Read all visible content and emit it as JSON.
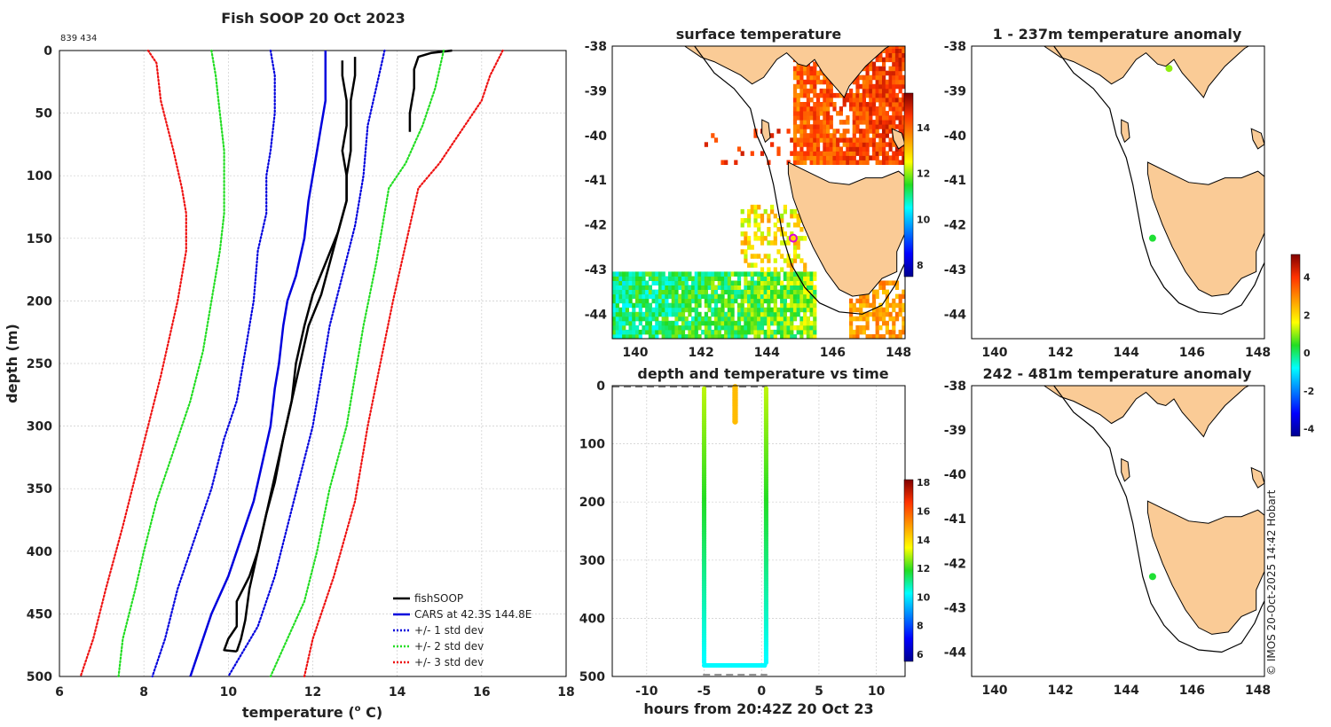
{
  "chart_data": [
    {
      "type": "line",
      "title": "Fish SOOP 20 Oct 2023",
      "id_label": "839 434",
      "xlabel_main": "temperature (",
      "xlabel_sup": "o",
      "xlabel_end": " C)",
      "ylabel": "depth (m)",
      "xlim": [
        6,
        18
      ],
      "ylim": [
        500,
        0
      ],
      "xticks": [
        "6",
        "8",
        "10",
        "12",
        "14",
        "16",
        "18"
      ],
      "yticks": [
        "0",
        "50",
        "100",
        "150",
        "200",
        "250",
        "300",
        "350",
        "400",
        "450",
        "500"
      ],
      "grid": true,
      "legend_position": "bottom-right",
      "legend": [
        "fishSOOP",
        "CARS at 42.3S 144.8E",
        "+/- 1 std dev",
        "+/- 2 std dev",
        "+/- 3 std dev"
      ],
      "series": [
        {
          "name": "fishSOOP descent",
          "color": "#000000",
          "style": "solid",
          "points": [
            [
              13.0,
              5
            ],
            [
              13.0,
              20
            ],
            [
              12.9,
              40
            ],
            [
              12.9,
              60
            ],
            [
              12.9,
              80
            ],
            [
              12.8,
              100
            ],
            [
              12.8,
              120
            ],
            [
              12.6,
              145
            ],
            [
              12.4,
              170
            ],
            [
              12.2,
              195
            ],
            [
              11.9,
              220
            ],
            [
              11.7,
              250
            ],
            [
              11.5,
              280
            ],
            [
              11.3,
              310
            ],
            [
              11.1,
              340
            ],
            [
              10.9,
              370
            ],
            [
              10.7,
              400
            ],
            [
              10.5,
              430
            ],
            [
              10.4,
              455
            ],
            [
              10.3,
              470
            ],
            [
              10.2,
              480
            ]
          ]
        },
        {
          "name": "fishSOOP ascent",
          "color": "#000000",
          "style": "solid",
          "points": [
            [
              10.2,
              480
            ],
            [
              9.9,
              479
            ],
            [
              10.0,
              470
            ],
            [
              10.2,
              460
            ],
            [
              10.2,
              440
            ],
            [
              10.5,
              420
            ],
            [
              10.7,
              400
            ],
            [
              10.9,
              370
            ],
            [
              11.1,
              345
            ],
            [
              11.3,
              310
            ],
            [
              11.5,
              280
            ],
            [
              11.6,
              250
            ],
            [
              11.8,
              220
            ],
            [
              12.0,
              195
            ],
            [
              12.3,
              170
            ],
            [
              12.6,
              145
            ],
            [
              12.8,
              120
            ],
            [
              12.8,
              100
            ],
            [
              12.7,
              80
            ],
            [
              12.8,
              60
            ],
            [
              12.8,
              40
            ],
            [
              12.7,
              20
            ],
            [
              12.7,
              8
            ]
          ]
        },
        {
          "name": "fishSOOP surface",
          "color": "#000000",
          "style": "solid",
          "points": [
            [
              15.3,
              0
            ],
            [
              14.8,
              2
            ],
            [
              14.5,
              5
            ],
            [
              14.4,
              15
            ],
            [
              14.4,
              30
            ],
            [
              14.3,
              50
            ],
            [
              14.3,
              65
            ]
          ]
        },
        {
          "name": "CARS at 42.3S 144.8E",
          "color": "#0000dd",
          "style": "solid",
          "points": [
            [
              12.3,
              0
            ],
            [
              12.3,
              20
            ],
            [
              12.3,
              40
            ],
            [
              12.2,
              60
            ],
            [
              12.1,
              80
            ],
            [
              12.0,
              100
            ],
            [
              11.9,
              120
            ],
            [
              11.8,
              150
            ],
            [
              11.6,
              180
            ],
            [
              11.4,
              200
            ],
            [
              11.3,
              220
            ],
            [
              11.2,
              250
            ],
            [
              11.1,
              270
            ],
            [
              11.0,
              300
            ],
            [
              10.8,
              330
            ],
            [
              10.6,
              360
            ],
            [
              10.3,
              390
            ],
            [
              10.0,
              420
            ],
            [
              9.6,
              450
            ],
            [
              9.3,
              480
            ],
            [
              9.1,
              500
            ]
          ]
        },
        {
          "name": "+/- 1 std dev lower",
          "color": "#0000dd",
          "style": "dotted",
          "points": [
            [
              11.0,
              0
            ],
            [
              11.1,
              20
            ],
            [
              11.1,
              50
            ],
            [
              11.0,
              80
            ],
            [
              10.9,
              100
            ],
            [
              10.9,
              130
            ],
            [
              10.7,
              160
            ],
            [
              10.6,
              200
            ],
            [
              10.4,
              240
            ],
            [
              10.2,
              280
            ],
            [
              9.9,
              310
            ],
            [
              9.6,
              350
            ],
            [
              9.2,
              390
            ],
            [
              8.8,
              430
            ],
            [
              8.5,
              470
            ],
            [
              8.2,
              500
            ]
          ]
        },
        {
          "name": "+/- 1 std dev upper",
          "color": "#0000dd",
          "style": "dotted",
          "points": [
            [
              13.7,
              0
            ],
            [
              13.5,
              30
            ],
            [
              13.3,
              60
            ],
            [
              13.2,
              100
            ],
            [
              13.0,
              140
            ],
            [
              12.7,
              180
            ],
            [
              12.4,
              220
            ],
            [
              12.2,
              260
            ],
            [
              12.0,
              300
            ],
            [
              11.7,
              340
            ],
            [
              11.4,
              380
            ],
            [
              11.1,
              420
            ],
            [
              10.7,
              460
            ],
            [
              10.0,
              500
            ]
          ]
        },
        {
          "name": "+/- 2 std dev lower",
          "color": "#22dd22",
          "style": "dotted",
          "points": [
            [
              9.6,
              0
            ],
            [
              9.7,
              20
            ],
            [
              9.8,
              50
            ],
            [
              9.9,
              80
            ],
            [
              9.9,
              100
            ],
            [
              9.9,
              130
            ],
            [
              9.8,
              160
            ],
            [
              9.6,
              200
            ],
            [
              9.4,
              240
            ],
            [
              9.1,
              280
            ],
            [
              8.7,
              320
            ],
            [
              8.3,
              360
            ],
            [
              8.0,
              400
            ],
            [
              7.8,
              430
            ],
            [
              7.5,
              470
            ],
            [
              7.4,
              500
            ]
          ]
        },
        {
          "name": "+/- 2 std dev upper",
          "color": "#22dd22",
          "style": "dotted",
          "points": [
            [
              15.1,
              0
            ],
            [
              14.9,
              30
            ],
            [
              14.6,
              60
            ],
            [
              14.2,
              90
            ],
            [
              13.8,
              110
            ],
            [
              13.7,
              130
            ],
            [
              13.5,
              170
            ],
            [
              13.2,
              220
            ],
            [
              13.0,
              260
            ],
            [
              12.8,
              300
            ],
            [
              12.4,
              350
            ],
            [
              12.1,
              400
            ],
            [
              11.8,
              440
            ],
            [
              11.4,
              470
            ],
            [
              11.0,
              500
            ]
          ]
        },
        {
          "name": "+/- 3 std dev lower",
          "color": "#ee1111",
          "style": "dotted",
          "points": [
            [
              8.1,
              0
            ],
            [
              8.3,
              10
            ],
            [
              8.4,
              40
            ],
            [
              8.7,
              80
            ],
            [
              8.9,
              110
            ],
            [
              9.0,
              130
            ],
            [
              9.0,
              160
            ],
            [
              8.8,
              200
            ],
            [
              8.6,
              230
            ],
            [
              8.4,
              260
            ],
            [
              8.1,
              300
            ],
            [
              7.8,
              340
            ],
            [
              7.5,
              380
            ],
            [
              7.1,
              430
            ],
            [
              6.8,
              470
            ],
            [
              6.5,
              500
            ]
          ]
        },
        {
          "name": "+/- 3 std dev upper",
          "color": "#ee1111",
          "style": "dotted",
          "points": [
            [
              16.5,
              0
            ],
            [
              16.2,
              20
            ],
            [
              16.0,
              40
            ],
            [
              15.6,
              60
            ],
            [
              15.0,
              90
            ],
            [
              14.5,
              110
            ],
            [
              14.3,
              140
            ],
            [
              13.9,
              200
            ],
            [
              13.6,
              250
            ],
            [
              13.3,
              300
            ],
            [
              13.0,
              360
            ],
            [
              12.5,
              420
            ],
            [
              12.0,
              470
            ],
            [
              11.8,
              500
            ]
          ]
        }
      ]
    },
    {
      "type": "heatmap",
      "title": "surface temperature",
      "xlim": [
        139.3,
        148.2
      ],
      "ylim": [
        -44.55,
        -38
      ],
      "xticks": [
        "140",
        "142",
        "144",
        "146",
        "148"
      ],
      "yticks": [
        "-38",
        "-39",
        "-40",
        "-41",
        "-42",
        "-43",
        "-44"
      ],
      "colorbar_ticks": [
        "8",
        "10",
        "12",
        "14"
      ],
      "colorbar_range": [
        7.5,
        15.5
      ],
      "marker": {
        "lon": 144.8,
        "lat": -42.3,
        "color": "#dd00dd"
      }
    },
    {
      "type": "scatter",
      "title": "depth and temperature vs time",
      "xlabel": "hours from 20:42Z 20 Oct 23",
      "xlim": [
        -13,
        12.5
      ],
      "ylim": [
        500,
        0
      ],
      "xticks": [
        "-10",
        "-5",
        "0",
        "5",
        "10"
      ],
      "yticks": [
        "0",
        "100",
        "200",
        "300",
        "400",
        "500"
      ],
      "colorbar_ticks": [
        "6",
        "8",
        "10",
        "12",
        "14",
        "16",
        "18"
      ],
      "colorbar_range": [
        5.5,
        18.2
      ]
    },
    {
      "type": "scatter",
      "title": "1 - 237m temperature anomaly",
      "xlim": [
        139.3,
        148.2
      ],
      "ylim": [
        -44.55,
        -38
      ],
      "xticks": [
        "140",
        "142",
        "144",
        "146",
        "148"
      ],
      "yticks": [
        "-38",
        "-39",
        "-40",
        "-41",
        "-42",
        "-43",
        "-44"
      ],
      "points": [
        {
          "lon": 145.3,
          "lat": -38.5,
          "anomaly": 1.0
        },
        {
          "lon": 144.8,
          "lat": -42.3,
          "anomaly": 0.3
        }
      ]
    },
    {
      "type": "scatter",
      "title": "242 - 481m temperature anomaly",
      "xlim": [
        139.3,
        148.2
      ],
      "ylim": [
        -44.55,
        -38
      ],
      "xticks": [
        "140",
        "142",
        "144",
        "146",
        "148"
      ],
      "yticks": [
        "-38",
        "-39",
        "-40",
        "-41",
        "-42",
        "-43",
        "-44"
      ],
      "points": [
        {
          "lon": 144.8,
          "lat": -42.3,
          "anomaly": 0.3
        }
      ],
      "colorbar_ticks": [
        "-4",
        "-2",
        "0",
        "2",
        "4"
      ],
      "colorbar_range": [
        -4.4,
        5.2
      ]
    }
  ],
  "credit": "© IMOS 20-Oct-2025 14:42 Hobart"
}
